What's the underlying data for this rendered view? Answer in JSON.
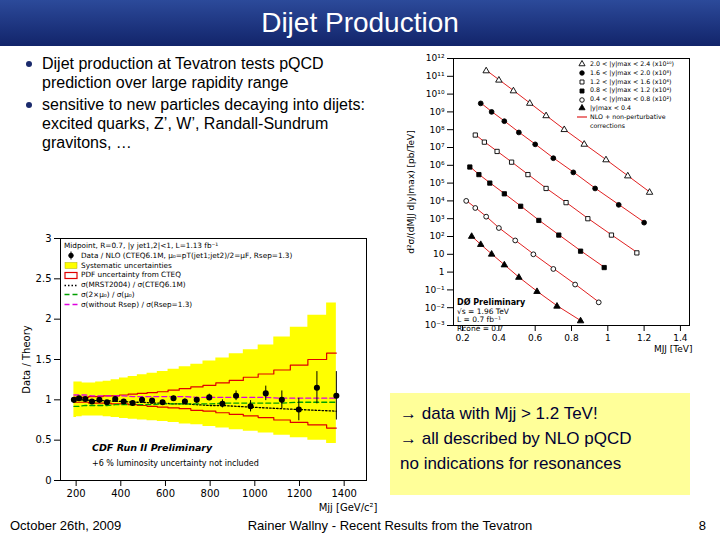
{
  "slide": {
    "title": "Dijet Production",
    "bullets": [
      "Dijet production at Tevatron  tests pQCD prediction over large rapidity range",
      "sensitive to new particles decaying into dijets: excited quarks, Z’, W’, Randall-Sundrum gravitons, …"
    ],
    "summary": [
      "→ data with Mjj > 1.2 TeV!",
      "→ all described by NLO pQCD",
      "no indications for resonances"
    ],
    "footer": {
      "date": "October 26th, 2009",
      "author": "Rainer Wallny - Recent Results from the Tevatron",
      "page": 8
    }
  },
  "chart_data": [
    {
      "type": "scatter",
      "subtitle": "Midpoint, R=0.7, |y jet1,2|<1, L=1.13 fb⁻¹",
      "x_label": "Mjj [GeV/c²]",
      "y_label": "Data / Theory",
      "xlim": [
        130,
        1500
      ],
      "xticks": [
        200,
        400,
        600,
        800,
        1000,
        1200,
        1400
      ],
      "ylim": [
        0,
        3
      ],
      "yticks": [
        0,
        0.5,
        1,
        1.5,
        2,
        2.5,
        3
      ],
      "grid": false,
      "legend": "top-left",
      "annotations": [
        "CDF Run II Preliminary",
        "+6 % luminosity uncertainty not included"
      ],
      "x": [
        190,
        213,
        241,
        271,
        304,
        338,
        375,
        413,
        453,
        495,
        540,
        587,
        636,
        687,
        740,
        796,
        855,
        916,
        981,
        1049,
        1121,
        1197,
        1278,
        1365
      ],
      "series": [
        {
          "name": "Data / NLO (CTEQ6.1M, μ₀=pT(jet1;jet2)/2=μF, Rsep=1.3)",
          "type": "scatter",
          "color": "#000000",
          "marker": "circle",
          "values": [
            1.0,
            1.02,
            1.01,
            0.98,
            1.0,
            0.97,
            1.01,
            0.98,
            0.96,
            1.0,
            0.99,
            0.97,
            1.02,
            0.98,
            1.0,
            1.03,
            0.95,
            1.05,
            0.92,
            1.08,
            1.0,
            0.88,
            1.15,
            1.05
          ],
          "errors": [
            0.01,
            0.01,
            0.01,
            0.01,
            0.01,
            0.01,
            0.01,
            0.01,
            0.015,
            0.015,
            0.02,
            0.02,
            0.025,
            0.03,
            0.03,
            0.04,
            0.05,
            0.06,
            0.07,
            0.09,
            0.11,
            0.14,
            0.2,
            0.3
          ]
        },
        {
          "name": "Systematic uncertainties",
          "type": "band",
          "color": "#ffff00",
          "lower": [
            0.78,
            0.79,
            0.8,
            0.8,
            0.8,
            0.79,
            0.78,
            0.77,
            0.76,
            0.75,
            0.74,
            0.73,
            0.72,
            0.7,
            0.69,
            0.67,
            0.65,
            0.63,
            0.61,
            0.59,
            0.56,
            0.53,
            0.5,
            0.46
          ],
          "upper": [
            1.22,
            1.22,
            1.21,
            1.21,
            1.22,
            1.23,
            1.25,
            1.27,
            1.29,
            1.31,
            1.33,
            1.35,
            1.38,
            1.41,
            1.44,
            1.48,
            1.52,
            1.57,
            1.62,
            1.68,
            1.78,
            1.9,
            2.05,
            2.2
          ]
        },
        {
          "name": "PDF uncertainty from CTEQ",
          "type": "band_outline",
          "color": "#e00000",
          "lower": [
            0.97,
            0.97,
            0.97,
            0.96,
            0.96,
            0.96,
            0.95,
            0.95,
            0.94,
            0.93,
            0.92,
            0.91,
            0.9,
            0.89,
            0.87,
            0.86,
            0.84,
            0.82,
            0.8,
            0.78,
            0.75,
            0.72,
            0.69,
            0.65
          ],
          "upper": [
            1.03,
            1.03,
            1.03,
            1.04,
            1.04,
            1.05,
            1.05,
            1.06,
            1.07,
            1.08,
            1.09,
            1.1,
            1.12,
            1.14,
            1.16,
            1.18,
            1.21,
            1.24,
            1.28,
            1.32,
            1.37,
            1.43,
            1.5,
            1.58
          ]
        },
        {
          "name": "σ(MRST2004) / σ(CTEQ6.1M)",
          "type": "line",
          "color": "#000000",
          "line_style": "dotted",
          "values": [
            1.0,
            1.0,
            1.0,
            0.99,
            0.99,
            0.99,
            0.98,
            0.98,
            0.97,
            0.97,
            0.96,
            0.96,
            0.95,
            0.95,
            0.94,
            0.93,
            0.93,
            0.92,
            0.91,
            0.9,
            0.89,
            0.88,
            0.87,
            0.86
          ]
        },
        {
          "name": "σ(2×μ₀) / σ(μ₀)",
          "type": "line",
          "color": "#00a000",
          "line_style": "dashed",
          "values": [
            0.92,
            0.92,
            0.93,
            0.93,
            0.93,
            0.93,
            0.94,
            0.94,
            0.94,
            0.94,
            0.94,
            0.95,
            0.95,
            0.95,
            0.95,
            0.95,
            0.96,
            0.96,
            0.96,
            0.96,
            0.96,
            0.97,
            0.97,
            0.97
          ]
        },
        {
          "name": "σ(without Rsep) / σ(Rsep=1.3)",
          "type": "line",
          "color": "#e000e0",
          "line_style": "dashed",
          "values": [
            1.06,
            1.06,
            1.06,
            1.05,
            1.05,
            1.05,
            1.05,
            1.05,
            1.04,
            1.04,
            1.04,
            1.04,
            1.04,
            1.04,
            1.03,
            1.03,
            1.03,
            1.03,
            1.03,
            1.03,
            1.02,
            1.02,
            1.02,
            1.02
          ]
        }
      ]
    },
    {
      "type": "scatter",
      "log": "y",
      "x_label": "MJJ [TeV]",
      "y_label": "d²σ/(dMJJ d|y|max) [pb/TeV]",
      "xlim": [
        0.15,
        1.45
      ],
      "xticks": [
        0.2,
        0.4,
        0.6,
        0.8,
        1,
        1.2,
        1.4
      ],
      "ylim": [
        0.001,
        1000000000000
      ],
      "yticks": [
        {
          "value": 0.001,
          "label": "10⁻³"
        },
        {
          "value": 0.01,
          "label": "10⁻²"
        },
        {
          "value": 0.1,
          "label": "10⁻¹"
        },
        1,
        10,
        {
          "value": 100,
          "label": "10²"
        },
        {
          "value": 1000,
          "label": "10³"
        },
        {
          "value": 10000,
          "label": "10⁴"
        },
        {
          "value": 100000,
          "label": "10⁵"
        },
        {
          "value": 1000000,
          "label": "10⁶"
        },
        {
          "value": 10000000,
          "label": "10⁷"
        },
        {
          "value": 100000000,
          "label": "10⁸"
        },
        {
          "value": 1000000000,
          "label": "10⁹"
        },
        {
          "value": 10000000000,
          "label": "10¹⁰"
        },
        {
          "value": 100000000000,
          "label": "10¹¹"
        },
        {
          "value": 1000000000000,
          "label": "10¹²"
        }
      ],
      "grid": false,
      "legend": "top-right",
      "annotations": [
        "DØ Preliminary",
        "√s = 1.96 TeV",
        "L = 0.7 fb⁻¹",
        "Rcone = 0.7"
      ],
      "theory": {
        "name": "NLO + non-perturbative corrections",
        "color": "#e02020",
        "line_style": "solid"
      },
      "series": [
        {
          "name": "2.0 < |y|max < 2.4 (x10¹⁰)",
          "color": "#000000",
          "marker": "triangle-open",
          "x": [
            0.33,
            0.4,
            0.48,
            0.57,
            0.66,
            0.76,
            0.87,
            0.99,
            1.11,
            1.23
          ],
          "values": [
            200000000000,
            60000000000,
            15000000000,
            3000000000,
            600000000,
            100000000,
            15000000,
            2000000,
            250000,
            30000
          ],
          "nlo": [
            220000000000,
            65000000000,
            16000000000,
            3200000000,
            630000000,
            105000000,
            16000000,
            2100000,
            260000,
            32000
          ]
        },
        {
          "name": "1.6 < |y|max < 2.0 (x10⁸)",
          "color": "#000000",
          "marker": "circle",
          "x": [
            0.3,
            0.36,
            0.43,
            0.51,
            0.6,
            0.7,
            0.81,
            0.93,
            1.06,
            1.2
          ],
          "values": [
            3000000000,
            1000000000,
            300000000,
            70000000,
            15000000,
            2500000,
            400000,
            50000,
            6000,
            600
          ],
          "nlo": [
            3200000000,
            1050000000,
            310000000,
            73000000,
            15500000,
            2600000,
            420000,
            52000,
            6300,
            640
          ]
        },
        {
          "name": "1.2 < |y|max < 1.6 (x10⁶)",
          "color": "#000000",
          "marker": "square-open",
          "x": [
            0.27,
            0.32,
            0.39,
            0.47,
            0.56,
            0.66,
            0.77,
            0.89,
            1.02,
            1.16
          ],
          "values": [
            50000000,
            20000000,
            6000000,
            1500000,
            300000,
            50000,
            8000,
            1000,
            120,
            12
          ],
          "nlo": [
            53000000,
            21000000,
            6200000,
            1550000,
            310000,
            52000,
            8300,
            1050,
            125,
            13
          ]
        },
        {
          "name": "0.8 < |y|max < 1.2 (x10⁴)",
          "color": "#000000",
          "marker": "square",
          "x": [
            0.24,
            0.29,
            0.35,
            0.43,
            0.52,
            0.62,
            0.73,
            0.85,
            0.98
          ],
          "values": [
            800000,
            300000,
            100000,
            25000,
            5000,
            800,
            120,
            15,
            1.8
          ],
          "nlo": [
            840000,
            310000,
            105000,
            26000,
            5200,
            830,
            125,
            16,
            1.9
          ]
        },
        {
          "name": "0.4 < |y|max < 0.8 (x10²)",
          "color": "#000000",
          "marker": "circle-open",
          "x": [
            0.22,
            0.27,
            0.33,
            0.4,
            0.49,
            0.59,
            0.7,
            0.82,
            0.95
          ],
          "values": [
            10000,
            4000,
            1300,
            300,
            60,
            10,
            1.5,
            0.2,
            0.02
          ],
          "nlo": [
            10500,
            4200,
            1350,
            310,
            62,
            10.5,
            1.6,
            0.21,
            0.021
          ]
        },
        {
          "name": "|y|max < 0.4",
          "color": "#000000",
          "marker": "triangle",
          "x": [
            0.25,
            0.3,
            0.36,
            0.43,
            0.51,
            0.61,
            0.72,
            0.85
          ],
          "values": [
            100,
            35,
            10,
            2.5,
            0.5,
            0.08,
            0.012,
            0.0018
          ],
          "nlo": [
            105,
            36,
            10.5,
            2.6,
            0.52,
            0.084,
            0.013,
            0.0019
          ]
        }
      ]
    }
  ]
}
